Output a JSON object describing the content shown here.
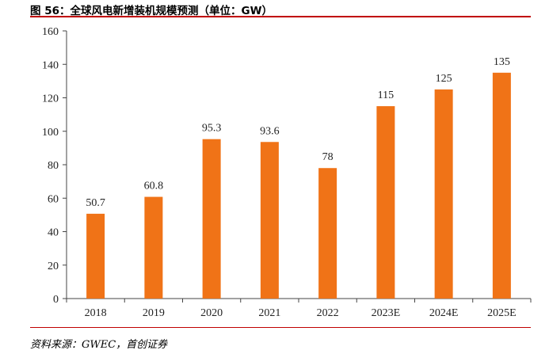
{
  "figure": {
    "title": "图 56：全球风电新增装机规模预测（单位：GW）",
    "source": "资料来源：GWEC，首创证券"
  },
  "colors": {
    "bar": "#f07317",
    "rule": "#c00000",
    "axis": "#444444"
  },
  "chart_data": {
    "type": "bar",
    "title": "全球风电新增装机规模预测（单位：GW）",
    "xlabel": "",
    "ylabel": "",
    "categories": [
      "2018",
      "2019",
      "2020",
      "2021",
      "2022",
      "2023E",
      "2024E",
      "2025E"
    ],
    "values": [
      50.7,
      60.8,
      95.3,
      93.6,
      78,
      115,
      125,
      135
    ],
    "value_labels": [
      "50.7",
      "60.8",
      "95.3",
      "93.6",
      "78",
      "115",
      "125",
      "135"
    ],
    "ylim": [
      0,
      160
    ],
    "yticks": [
      "0",
      "20",
      "40",
      "60",
      "80",
      "100",
      "120",
      "140",
      "160"
    ],
    "grid": false,
    "legend": "none"
  }
}
